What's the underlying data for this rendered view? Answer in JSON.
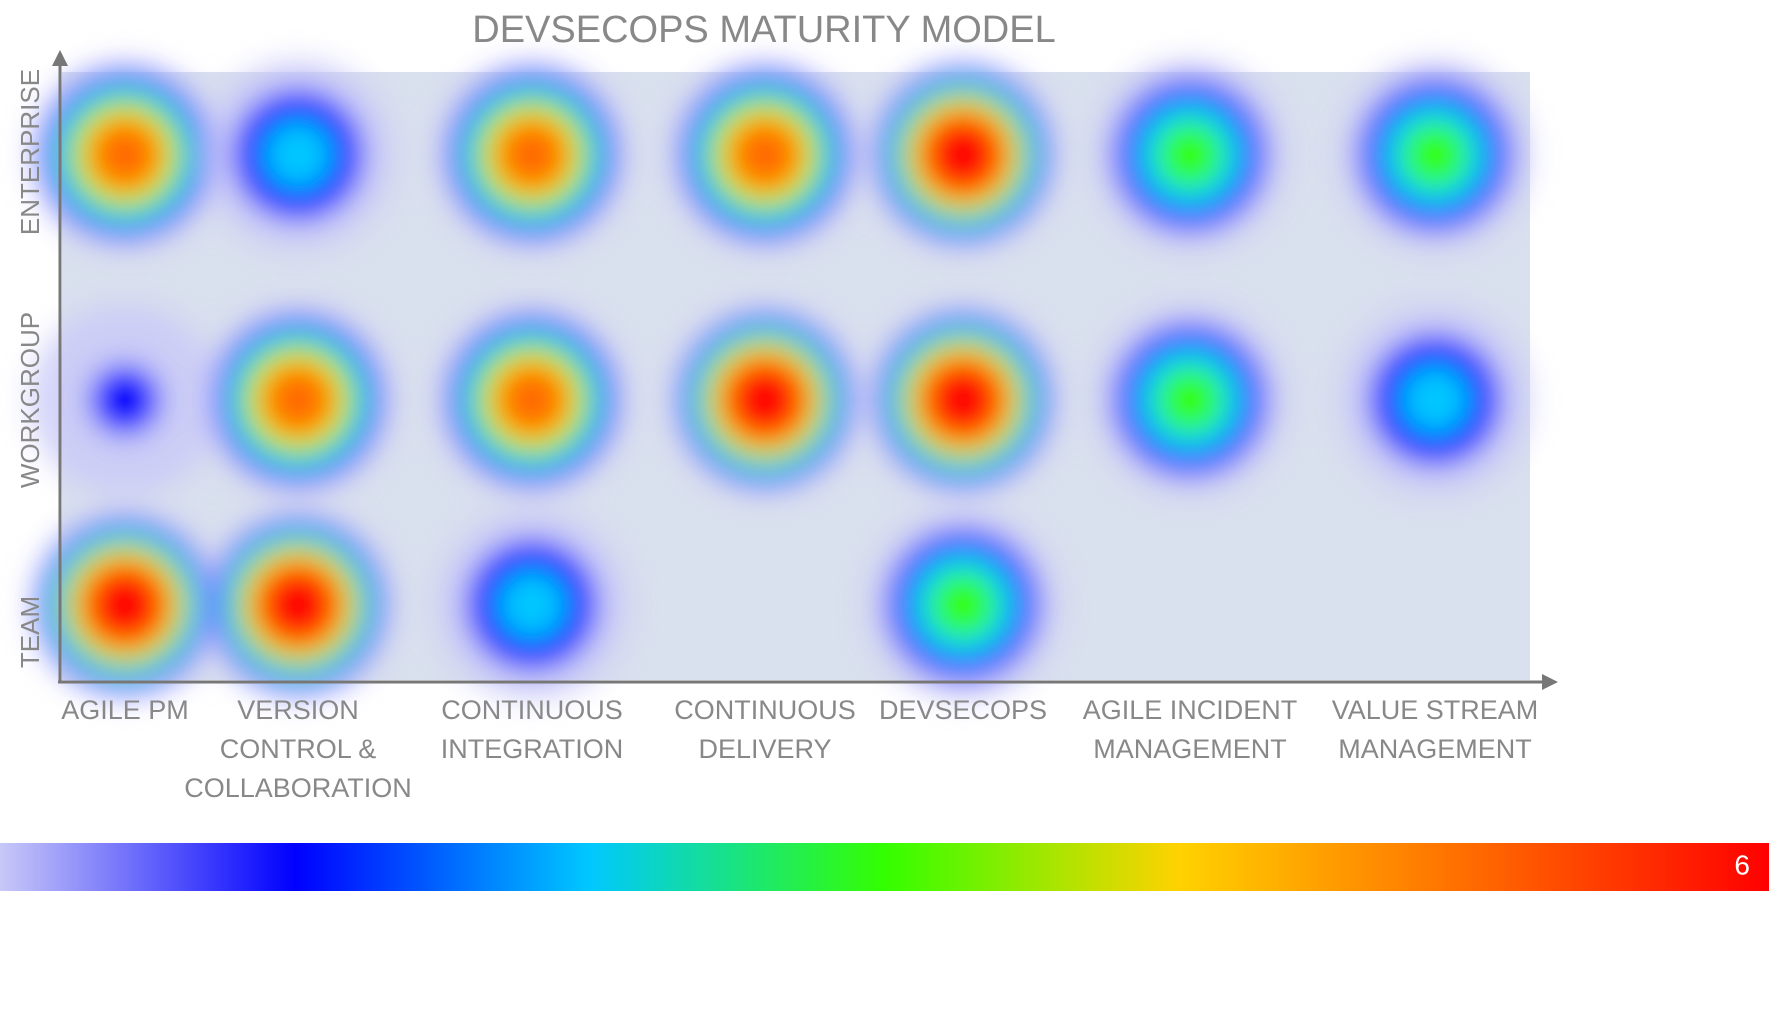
{
  "chart_data": {
    "type": "heatmap",
    "title": "DEVSECOPS MATURITY MODEL",
    "categories": [
      "AGILE PM",
      "VERSION\nCONTROL &\nCOLLABORATION",
      "CONTINUOUS\nINTEGRATION",
      "CONTINUOUS\nDELIVERY",
      "DEVSECOPS",
      "AGILE INCIDENT\nMANAGEMENT",
      "VALUE STREAM\nMANAGEMENT"
    ],
    "levels": [
      "TEAM",
      "WORKGROUP",
      "ENTERPRISE"
    ],
    "values": [
      [
        6,
        5.5,
        2,
        0,
        3,
        0,
        0
      ],
      [
        1,
        5,
        5,
        5.5,
        5.5,
        3,
        2
      ],
      [
        4.5,
        2,
        4.5,
        4.5,
        5.5,
        3,
        3
      ]
    ],
    "zlim": [
      0,
      6
    ],
    "zticks": [
      6
    ],
    "colors": [
      "#c8c8f8",
      "#0000ff",
      "#00c8ff",
      "#33ff00",
      "#ffd200",
      "#ff6a00",
      "#ff0000"
    ]
  }
}
